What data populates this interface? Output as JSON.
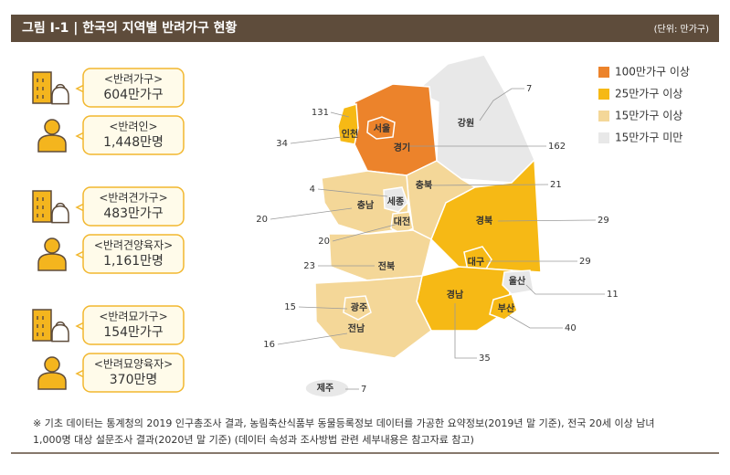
{
  "header": {
    "title": "그림 Ⅰ-1 | 한국의 지역별 반려가구 현황",
    "unit": "(단위: 만가구)"
  },
  "stats": [
    {
      "label": "<반려가구>",
      "value": "604만가구"
    },
    {
      "label": "<반려인>",
      "value": "1,448만명"
    },
    {
      "label": "<반려견가구>",
      "value": "483만가구"
    },
    {
      "label": "<반려견양육자>",
      "value": "1,161만명"
    },
    {
      "label": "<반려묘가구>",
      "value": "154만가구"
    },
    {
      "label": "<반려묘양육자>",
      "value": "370만명"
    }
  ],
  "legend": [
    {
      "label": "100만가구 이상",
      "color": "#ec832b"
    },
    {
      "label": "25만가구 이상",
      "color": "#f6b915"
    },
    {
      "label": "15만가구 이상",
      "color": "#f4d798"
    },
    {
      "label": "15만가구 미만",
      "color": "#e8e8e8"
    }
  ],
  "regions": [
    {
      "name": "서울",
      "value": 131,
      "color": "#ec832b"
    },
    {
      "name": "인천",
      "value": 34,
      "color": "#f6b915"
    },
    {
      "name": "경기",
      "value": 162,
      "color": "#ec832b"
    },
    {
      "name": "강원",
      "value": 7,
      "color": "#e8e8e8"
    },
    {
      "name": "충북",
      "value": 21,
      "color": "#f4d798"
    },
    {
      "name": "충남",
      "value": 20,
      "color": "#f4d798"
    },
    {
      "name": "세종",
      "value": 4,
      "color": "#e8e8e8"
    },
    {
      "name": "대전",
      "value": 20,
      "color": "#f4d798"
    },
    {
      "name": "전북",
      "value": 23,
      "color": "#f4d798"
    },
    {
      "name": "경북",
      "value": 29,
      "color": "#f6b915"
    },
    {
      "name": "대구",
      "value": 29,
      "color": "#f6b915"
    },
    {
      "name": "울산",
      "value": 11,
      "color": "#e8e8e8"
    },
    {
      "name": "경남",
      "value": 35,
      "color": "#f6b915"
    },
    {
      "name": "부산",
      "value": 40,
      "color": "#f6b915"
    },
    {
      "name": "광주",
      "value": 15,
      "color": "#f4d798"
    },
    {
      "name": "전남",
      "value": 16,
      "color": "#f4d798"
    },
    {
      "name": "제주",
      "value": 7,
      "color": "#e8e8e8"
    }
  ],
  "footnote": [
    "※ 기초 데이터는 통계청의 2019 인구총조사 결과, 농림축산식품부 동물등록정보 데이터를 가공한 요약정보(2019년 말 기준), 전국 20세 이상 남녀",
    "1,000명 대상 설문조사 결과(2020년 말 기준)  (데이터 속성과 조사방법 관련 세부내용은 참고자료 참고)"
  ]
}
